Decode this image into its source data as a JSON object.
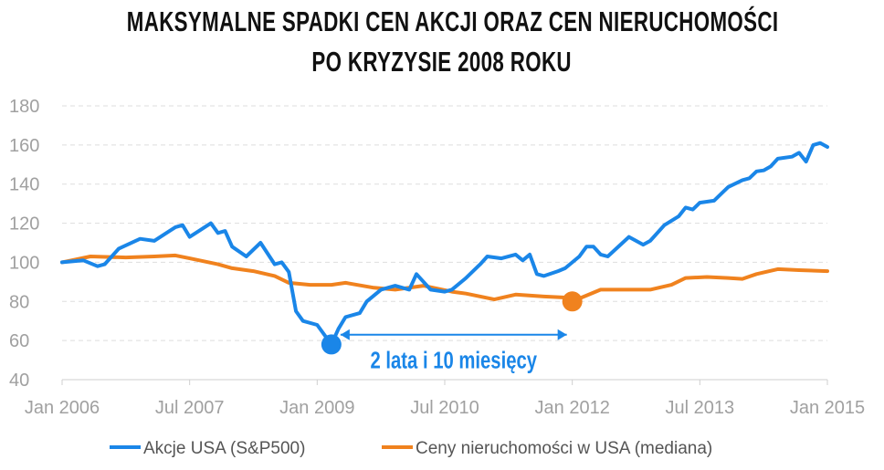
{
  "chart_data": {
    "type": "line",
    "title": [
      "MAKSYMALNE SPADKI CEN AKCJI ORAZ CEN NIERUCHOMOŚCI",
      "PO KRYZYSIE 2008 ROKU"
    ],
    "xlabel": "",
    "ylabel": "",
    "ylim": [
      40,
      180
    ],
    "yticks": [
      "40",
      "60",
      "80",
      "100",
      "120",
      "140",
      "160",
      "180"
    ],
    "xlim": [
      "2006-01",
      "2015-01"
    ],
    "xticks": [
      {
        "date": "2006-01",
        "label": "Jan 2006"
      },
      {
        "date": "2007-07",
        "label": "Jul 2007"
      },
      {
        "date": "2009-01",
        "label": "Jan 2009"
      },
      {
        "date": "2010-07",
        "label": "Jul 2010"
      },
      {
        "date": "2012-01",
        "label": "Jan 2012"
      },
      {
        "date": "2013-07",
        "label": "Jul 2013"
      },
      {
        "date": "2015-01",
        "label": "Jan 2015"
      }
    ],
    "grid": true,
    "legend_position": "bottom",
    "series": [
      {
        "name": "Akcje USA (S&P500)",
        "color": "#1a86e8",
        "points": [
          [
            "2006-01",
            100
          ],
          [
            "2006-04",
            101
          ],
          [
            "2006-06",
            98
          ],
          [
            "2006-07",
            99
          ],
          [
            "2006-09",
            107
          ],
          [
            "2006-12",
            112
          ],
          [
            "2007-02",
            111
          ],
          [
            "2007-05",
            118
          ],
          [
            "2007-06",
            119
          ],
          [
            "2007-07",
            113
          ],
          [
            "2007-10",
            120
          ],
          [
            "2007-11",
            115
          ],
          [
            "2007-12",
            116
          ],
          [
            "2008-01",
            108
          ],
          [
            "2008-03",
            103
          ],
          [
            "2008-05",
            110
          ],
          [
            "2008-07",
            99
          ],
          [
            "2008-08",
            100
          ],
          [
            "2008-09",
            95
          ],
          [
            "2008-10",
            75
          ],
          [
            "2008-11",
            70
          ],
          [
            "2009-01",
            68
          ],
          [
            "2009-03",
            58
          ],
          [
            "2009-04",
            66
          ],
          [
            "2009-05",
            72
          ],
          [
            "2009-07",
            74
          ],
          [
            "2009-08",
            80
          ],
          [
            "2009-10",
            86
          ],
          [
            "2009-12",
            88
          ],
          [
            "2010-02",
            86
          ],
          [
            "2010-03",
            94
          ],
          [
            "2010-05",
            86
          ],
          [
            "2010-07",
            85
          ],
          [
            "2010-08",
            86
          ],
          [
            "2010-10",
            92
          ],
          [
            "2010-12",
            99
          ],
          [
            "2011-01",
            103
          ],
          [
            "2011-03",
            102
          ],
          [
            "2011-05",
            104
          ],
          [
            "2011-06",
            101
          ],
          [
            "2011-07",
            104
          ],
          [
            "2011-08",
            94
          ],
          [
            "2011-09",
            93
          ],
          [
            "2011-11",
            95.5
          ],
          [
            "2011-12",
            97
          ],
          [
            "2012-02",
            103
          ],
          [
            "2012-03",
            108
          ],
          [
            "2012-04",
            108
          ],
          [
            "2012-05",
            104
          ],
          [
            "2012-06",
            103
          ],
          [
            "2012-09",
            113
          ],
          [
            "2012-11",
            109
          ],
          [
            "2012-12",
            111
          ],
          [
            "2013-02",
            119
          ],
          [
            "2013-04",
            123.5
          ],
          [
            "2013-05",
            128
          ],
          [
            "2013-06",
            127
          ],
          [
            "2013-07",
            130.5
          ],
          [
            "2013-09",
            131.5
          ],
          [
            "2013-10",
            135
          ],
          [
            "2013-11",
            138.5
          ],
          [
            "2014-01",
            142
          ],
          [
            "2014-02",
            143
          ],
          [
            "2014-03",
            146.5
          ],
          [
            "2014-04",
            147
          ],
          [
            "2014-05",
            149
          ],
          [
            "2014-06",
            153
          ],
          [
            "2014-08",
            154
          ],
          [
            "2014-09",
            156
          ],
          [
            "2014-10",
            151.5
          ],
          [
            "2014-11",
            160
          ],
          [
            "2014-12",
            161
          ],
          [
            "2015-01",
            159
          ]
        ]
      },
      {
        "name": "Ceny nieruchomości w USA (mediana)",
        "color": "#f0821e",
        "points": [
          [
            "2006-01",
            100
          ],
          [
            "2006-05",
            103
          ],
          [
            "2006-10",
            102.5
          ],
          [
            "2007-02",
            103
          ],
          [
            "2007-05",
            103.5
          ],
          [
            "2007-07",
            102
          ],
          [
            "2007-11",
            99
          ],
          [
            "2008-01",
            97
          ],
          [
            "2008-04",
            95.5
          ],
          [
            "2008-07",
            93
          ],
          [
            "2008-09",
            89.5
          ],
          [
            "2008-12",
            88.5
          ],
          [
            "2009-03",
            88.5
          ],
          [
            "2009-05",
            89.5
          ],
          [
            "2009-09",
            87
          ],
          [
            "2009-12",
            86
          ],
          [
            "2010-04",
            88
          ],
          [
            "2010-08",
            85
          ],
          [
            "2010-10",
            84
          ],
          [
            "2011-02",
            81
          ],
          [
            "2011-05",
            83.5
          ],
          [
            "2011-09",
            82.5
          ],
          [
            "2011-12",
            82
          ],
          [
            "2012-01",
            80
          ],
          [
            "2012-04",
            84.5
          ],
          [
            "2012-05",
            86
          ],
          [
            "2012-12",
            86
          ],
          [
            "2013-03",
            88.5
          ],
          [
            "2013-05",
            92
          ],
          [
            "2013-08",
            92.5
          ],
          [
            "2013-11",
            92
          ],
          [
            "2014-01",
            91.5
          ],
          [
            "2014-03",
            94
          ],
          [
            "2014-06",
            96.5
          ],
          [
            "2014-09",
            96
          ],
          [
            "2015-01",
            95.5
          ]
        ]
      }
    ],
    "markers": [
      {
        "series": "Akcje USA (S&P500)",
        "date": "2009-03",
        "value": 58,
        "color": "#1a86e8"
      },
      {
        "series": "Ceny nieruchomości w USA (mediana)",
        "date": "2012-01",
        "value": 80,
        "color": "#f0821e"
      }
    ],
    "annotation": {
      "text": "2 lata i 10 miesięcy",
      "from": "2009-03",
      "to": "2012-01",
      "value": 63,
      "color": "#1a86e8"
    }
  }
}
